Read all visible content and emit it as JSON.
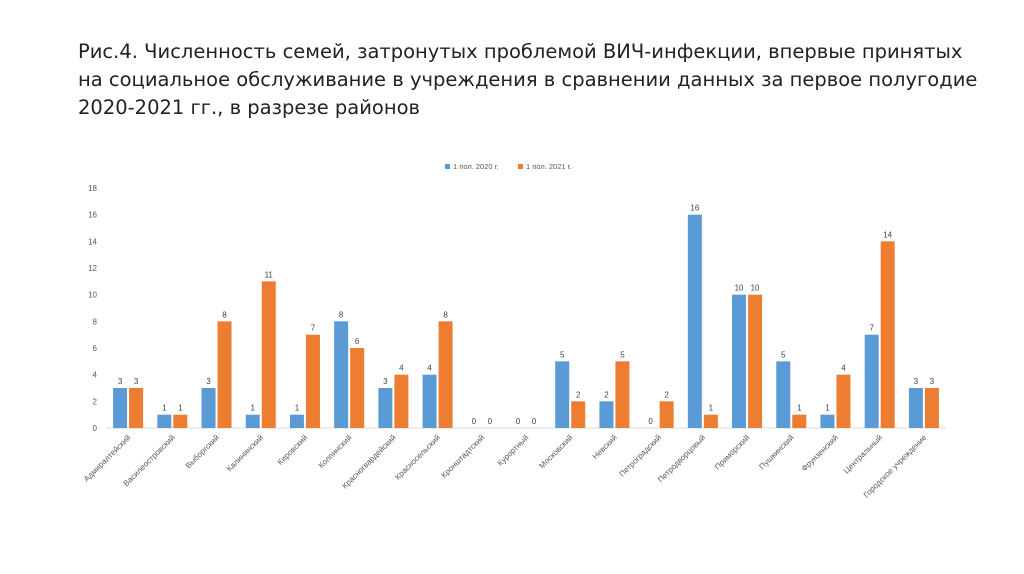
{
  "chart_data": {
    "type": "bar",
    "title": "Рис.4. Численность семей, затронутых проблемой ВИЧ-инфекции, впервые принятых на социальное обслуживание в учреждения в сравнении данных за первое полугодие 2020-2021 гг., в разрезе районов",
    "categories": [
      "Адмиралтейский",
      "Василеостровский",
      "Выборгский",
      "Калининский",
      "Кировский",
      "Колпинский",
      "Красногвардейский",
      "Красносельский",
      "Кронштадтский",
      "Курортный",
      "Московский",
      "Невский",
      "Петроградский",
      "Петродворцовый",
      "Приморский",
      "Пушкинский",
      "Фрунзенский",
      "Центральный",
      "Городское учреждение"
    ],
    "series": [
      {
        "name": "1 пол. 2020 г.",
        "color": "#5B9BD5",
        "values": [
          3,
          1,
          3,
          1,
          1,
          8,
          3,
          4,
          0,
          0,
          5,
          2,
          0,
          16,
          10,
          5,
          1,
          7,
          3
        ]
      },
      {
        "name": "1 пол. 2021 г.",
        "color": "#ED7D31",
        "values": [
          3,
          1,
          8,
          11,
          7,
          6,
          4,
          8,
          0,
          0,
          2,
          5,
          2,
          1,
          10,
          1,
          4,
          14,
          3
        ]
      }
    ],
    "ylim": [
      0,
      18
    ],
    "yticks": [
      0,
      2,
      4,
      6,
      8,
      10,
      12,
      14,
      16,
      18
    ],
    "legend": "top-center",
    "xlabel": "",
    "ylabel": ""
  }
}
